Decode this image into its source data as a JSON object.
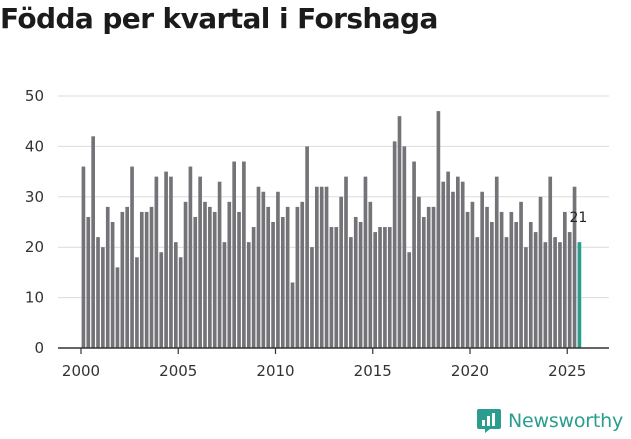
{
  "chart_data": {
    "type": "bar",
    "title": "Födda per kvartal i Forshaga",
    "xlabel": "",
    "ylabel": "",
    "ylim": [
      0,
      50
    ],
    "yticks": [
      0,
      10,
      20,
      30,
      40,
      50
    ],
    "xticks": [
      2000,
      2005,
      2010,
      2015,
      2020,
      2025
    ],
    "start_year": 2000,
    "start_quarter": 1,
    "values": [
      36,
      26,
      42,
      22,
      20,
      28,
      25,
      16,
      27,
      28,
      36,
      18,
      27,
      27,
      28,
      34,
      19,
      35,
      34,
      21,
      18,
      29,
      36,
      26,
      34,
      29,
      28,
      27,
      33,
      21,
      29,
      37,
      27,
      37,
      21,
      24,
      32,
      31,
      28,
      25,
      31,
      26,
      28,
      13,
      28,
      29,
      40,
      20,
      32,
      32,
      32,
      24,
      24,
      30,
      34,
      22,
      26,
      25,
      34,
      29,
      23,
      24,
      24,
      24,
      41,
      46,
      40,
      19,
      37,
      30,
      26,
      28,
      28,
      47,
      33,
      35,
      31,
      34,
      33,
      27,
      29,
      22,
      31,
      28,
      25,
      34,
      27,
      22,
      27,
      25,
      29,
      20,
      25,
      23,
      30,
      21,
      34,
      22,
      21,
      27,
      23,
      32,
      21
    ],
    "highlight_last": true,
    "last_label": "21",
    "colors": {
      "bar": "#747378",
      "highlight": "#2a9d8f",
      "grid": "#dcdcdc",
      "axis": "#333333"
    }
  },
  "brand": {
    "name": "Newsworthy",
    "icon": "newsworthy-logo-icon"
  }
}
